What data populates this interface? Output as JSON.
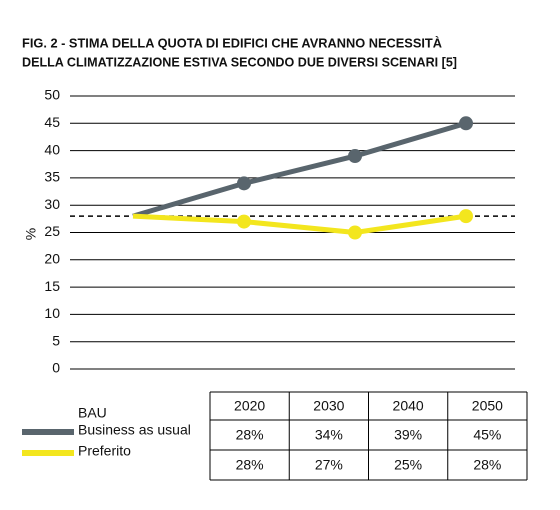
{
  "chart_data": {
    "type": "line",
    "title": [
      "FIG. 2 - STIMA DELLA QUOTA DI EDIFICI CHE AVRANNO NECESSITÀ",
      "DELLA CLIMATIZZAZIONE ESTIVA SECONDO DUE DIVERSI SCENARI [5]"
    ],
    "y_label": "%",
    "categories": [
      "2020",
      "2030",
      "2040",
      "2050"
    ],
    "series": [
      {
        "abbr": "BAU",
        "name": "Business as usual",
        "color": "#59656d",
        "values": [
          28,
          34,
          39,
          45
        ],
        "value_labels": [
          "28%",
          "34%",
          "39%",
          "45%"
        ]
      },
      {
        "name": "Preferito",
        "color": "#f3e61e",
        "values": [
          28,
          27,
          25,
          28
        ],
        "value_labels": [
          "28%",
          "27%",
          "25%",
          "28%"
        ]
      }
    ],
    "reference_line": 28,
    "ylim": [
      0,
      50
    ],
    "yticks": [
      0,
      5,
      10,
      15,
      20,
      25,
      30,
      35,
      40,
      45,
      50
    ],
    "grid": true
  }
}
